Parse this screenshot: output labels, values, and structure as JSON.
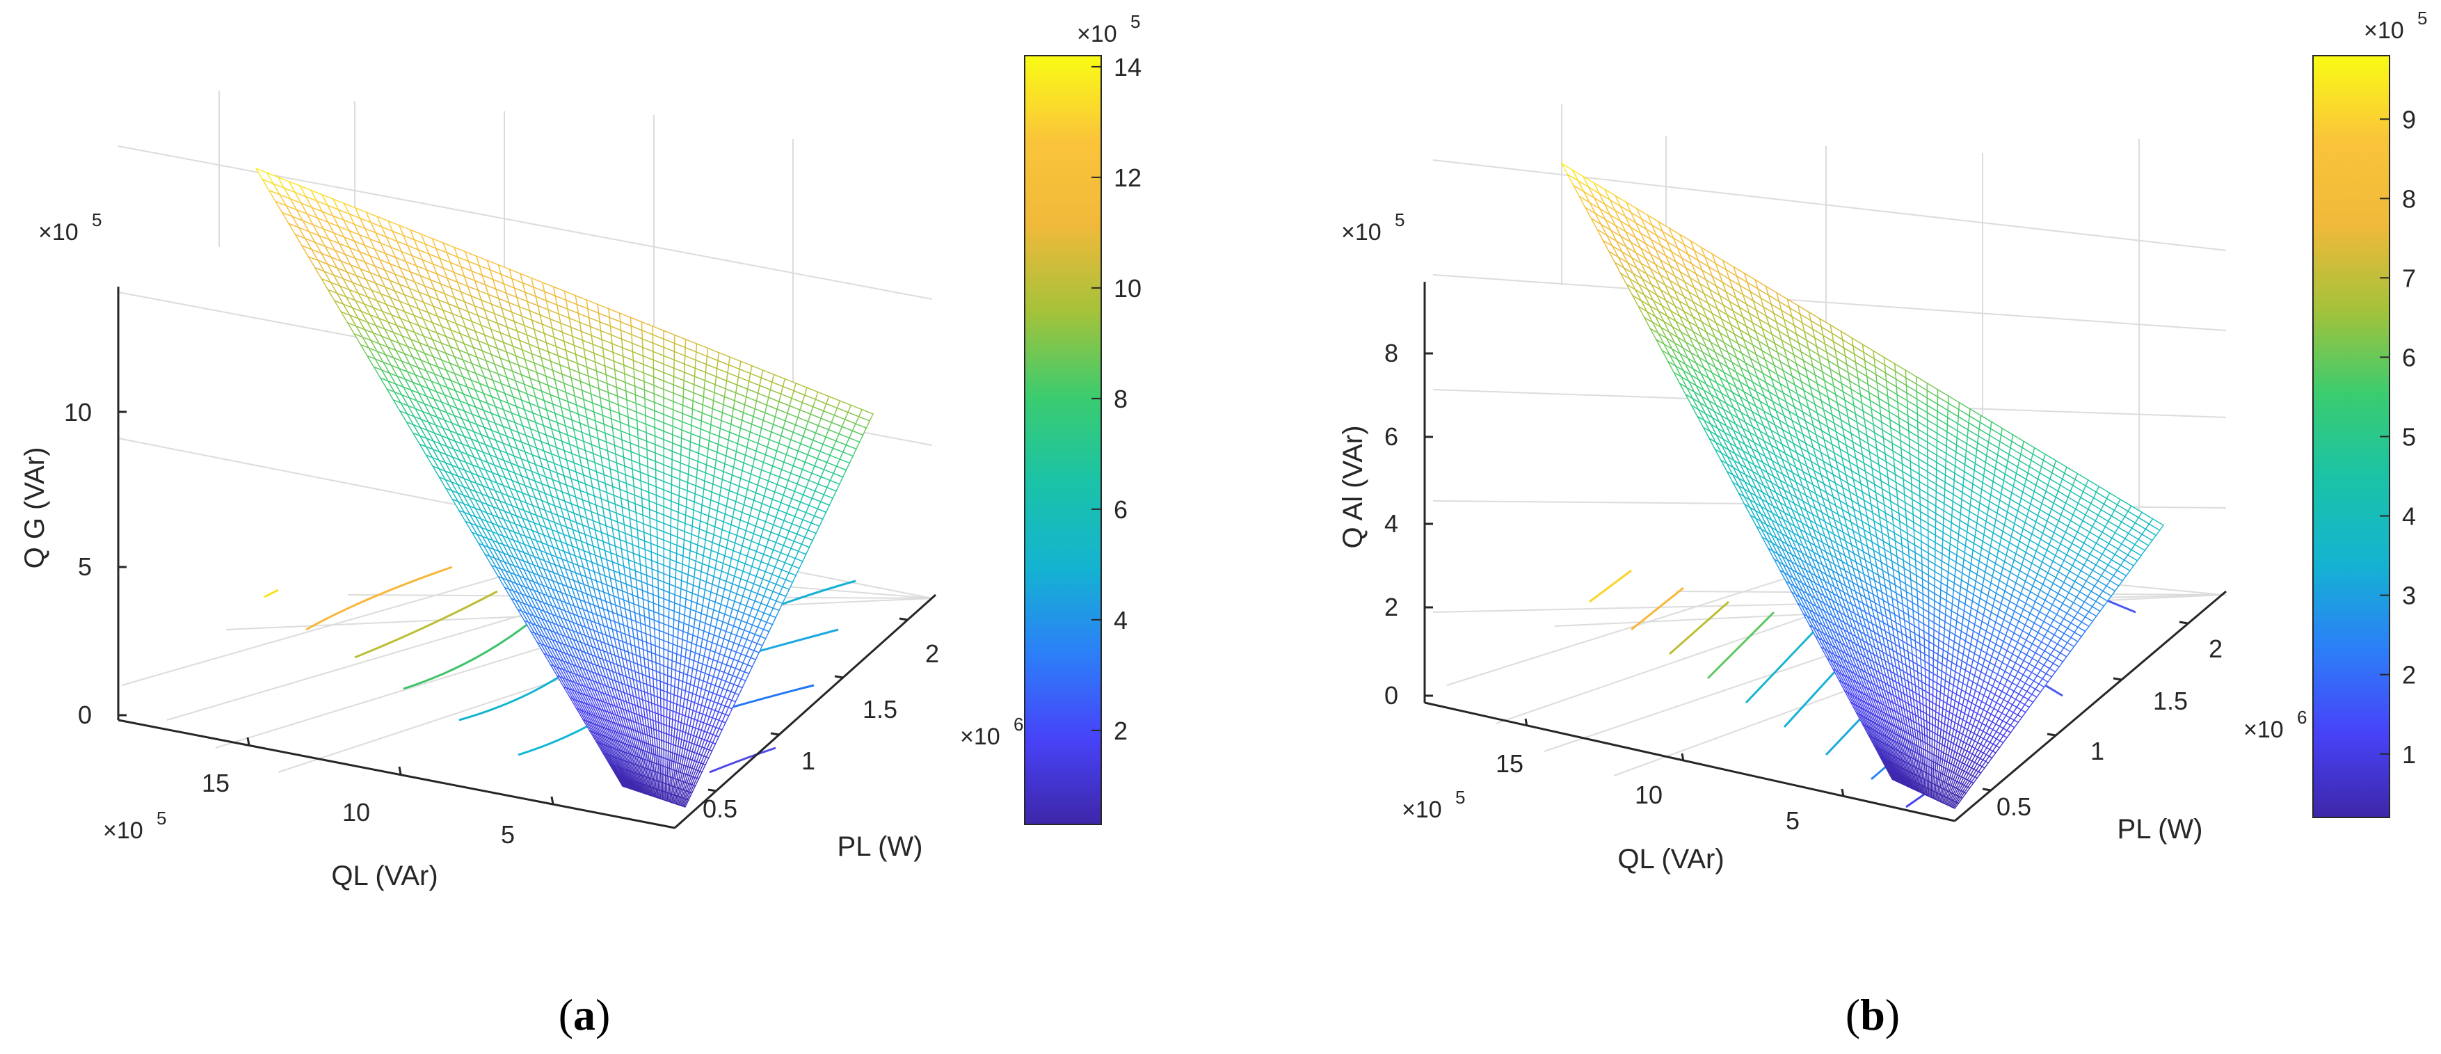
{
  "colors": {
    "axis": "#262626",
    "grid": "#dcdcdc",
    "colormap": [
      "#3e26a8",
      "#4743f8",
      "#2c7ff8",
      "#14b3d1",
      "#1ac3a8",
      "#3bcc6f",
      "#a5c23a",
      "#f0b93a",
      "#fac43a",
      "#f9fb15"
    ]
  },
  "chart_data": [
    {
      "type": "surface",
      "panel_label": "a",
      "zlabel": "Q G (VAr)",
      "xlabel": "QL (VAr)",
      "ylabel": "PL (W)",
      "z_multiplier": "×10",
      "z_multiplier_exp": "5",
      "x_multiplier": "×10",
      "x_multiplier_exp": "5",
      "y_multiplier": "×10",
      "y_multiplier_exp": "6",
      "cb_multiplier": "×10",
      "cb_multiplier_exp": "5",
      "x_ticks": [
        "15",
        "10",
        "5"
      ],
      "y_ticks": [
        "0.5",
        "1",
        "1.5",
        "2"
      ],
      "z_ticks": [
        "0",
        "5",
        "10"
      ],
      "colorbar_ticks": [
        "2",
        "4",
        "6",
        "8",
        "10",
        "12",
        "14"
      ],
      "colorbar_range": [
        0.3,
        14.2
      ],
      "z_range": [
        0,
        14.2
      ],
      "x_range": [
        0.5,
        19
      ],
      "y_range": [
        0.2,
        2.2
      ],
      "surface_corners": {
        "high": 14.2,
        "right": 9.5,
        "bottom": 0.3
      }
    },
    {
      "type": "surface",
      "panel_label": "b",
      "zlabel": "Q Al (VAr)",
      "xlabel": "QL (VAr)",
      "ylabel": "PL (W)",
      "z_multiplier": "×10",
      "z_multiplier_exp": "5",
      "x_multiplier": "×10",
      "x_multiplier_exp": "5",
      "y_multiplier": "×10",
      "y_multiplier_exp": "6",
      "cb_multiplier": "×10",
      "cb_multiplier_exp": "5",
      "x_ticks": [
        "15",
        "10",
        "5"
      ],
      "y_ticks": [
        "0.5",
        "1",
        "1.5",
        "2"
      ],
      "z_ticks": [
        "0",
        "2",
        "4",
        "6",
        "8"
      ],
      "colorbar_ticks": [
        "1",
        "2",
        "3",
        "4",
        "5",
        "6",
        "7",
        "8",
        "9"
      ],
      "colorbar_range": [
        0.2,
        9.8
      ],
      "z_range": [
        0,
        9.8
      ],
      "x_range": [
        0.5,
        19
      ],
      "y_range": [
        0.2,
        2.2
      ],
      "surface_corners": {
        "high": 9.8,
        "right": 4.1,
        "bottom": 0.2
      }
    }
  ]
}
